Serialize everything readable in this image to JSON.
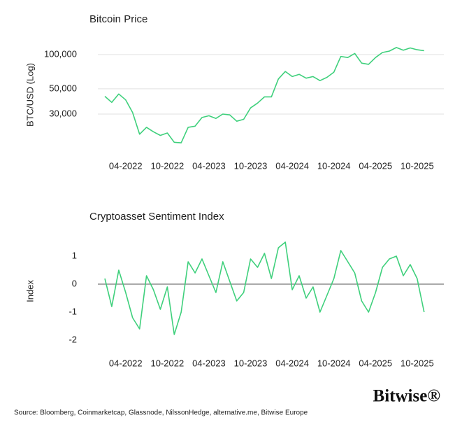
{
  "chart_data": [
    {
      "type": "line",
      "title": "Bitcoin Price",
      "y_label": "BTC/USD (Log)",
      "log_scale": true,
      "grid": true,
      "color": "#3fd07c",
      "categories": [
        null,
        null,
        null,
        "04-2022",
        null,
        null,
        null,
        null,
        null,
        "10-2022",
        null,
        null,
        null,
        null,
        null,
        "04-2023",
        null,
        null,
        null,
        null,
        null,
        "10-2023",
        null,
        null,
        null,
        null,
        null,
        "04-2024",
        null,
        null,
        null,
        null,
        null,
        "10-2024",
        null,
        null,
        null,
        null,
        null,
        "04-2025",
        null,
        null,
        null,
        null,
        null,
        "10-2025",
        null
      ],
      "values": [
        43000,
        38000,
        45000,
        40000,
        31000,
        20000,
        23000,
        21000,
        19500,
        20500,
        17000,
        16800,
        23000,
        23500,
        28000,
        29000,
        27500,
        30000,
        29500,
        26000,
        27000,
        34000,
        37500,
        42500,
        42500,
        61000,
        71000,
        64000,
        67000,
        62000,
        64000,
        59000,
        63000,
        70000,
        96000,
        94000,
        102000,
        84000,
        82000,
        94000,
        104000,
        107000,
        115000,
        109000,
        114000,
        110000,
        108000
      ],
      "ylim": [
        14000,
        140000
      ],
      "yticks": [
        {
          "value": 30000,
          "label": "30,000"
        },
        {
          "value": 50000,
          "label": "50,000"
        },
        {
          "value": 100000,
          "label": "100,000"
        }
      ]
    },
    {
      "type": "line",
      "title": "Cryptoasset Sentiment Index",
      "y_label": "Index",
      "log_scale": false,
      "grid": false,
      "zero_line": true,
      "color": "#3fd07c",
      "categories": [
        null,
        null,
        null,
        "04-2022",
        null,
        null,
        null,
        null,
        null,
        "10-2022",
        null,
        null,
        null,
        null,
        null,
        "04-2023",
        null,
        null,
        null,
        null,
        null,
        "10-2023",
        null,
        null,
        null,
        null,
        null,
        "04-2024",
        null,
        null,
        null,
        null,
        null,
        "10-2024",
        null,
        null,
        null,
        null,
        null,
        "04-2025",
        null,
        null,
        null,
        null,
        null,
        "10-2025",
        null
      ],
      "values": [
        0.2,
        -0.8,
        0.5,
        -0.3,
        -1.2,
        -1.6,
        0.3,
        -0.2,
        -0.9,
        -0.1,
        -1.8,
        -1.0,
        0.8,
        0.4,
        0.9,
        0.3,
        -0.3,
        0.8,
        0.1,
        -0.6,
        -0.3,
        0.9,
        0.6,
        1.1,
        0.2,
        1.3,
        1.5,
        -0.2,
        0.3,
        -0.5,
        -0.1,
        -1.0,
        -0.4,
        0.2,
        1.2,
        0.8,
        0.4,
        -0.6,
        -1.0,
        -0.3,
        0.6,
        0.9,
        1.0,
        0.3,
        0.7,
        0.2,
        -1.0
      ],
      "ylim": [
        -2.2,
        1.7
      ],
      "yticks": [
        -2,
        -1,
        0,
        1
      ]
    }
  ],
  "source": "Source: Bloomberg, Coinmarketcap, Glassnode, NilssonHedge, alternative.me, Bitwise Europe",
  "logo": "Bitwise®"
}
